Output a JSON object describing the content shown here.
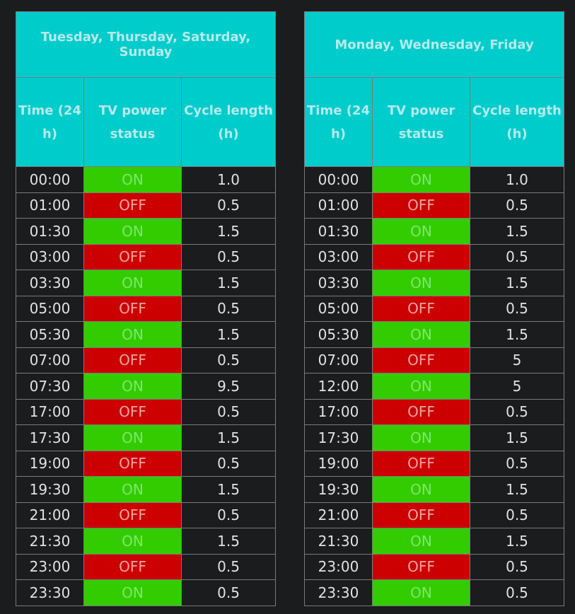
{
  "columns": [
    "Time (24 h)",
    "TV power status",
    "Cycle length (h)"
  ],
  "tables": [
    {
      "group": "Tuesday, Thursday, Saturday, Sunday",
      "rows": [
        {
          "time": "00:00",
          "status": "ON",
          "cycle": "1.0"
        },
        {
          "time": "01:00",
          "status": "OFF",
          "cycle": "0.5"
        },
        {
          "time": "01:30",
          "status": "ON",
          "cycle": "1.5"
        },
        {
          "time": "03:00",
          "status": "OFF",
          "cycle": "0.5"
        },
        {
          "time": "03:30",
          "status": "ON",
          "cycle": "1.5"
        },
        {
          "time": "05:00",
          "status": "OFF",
          "cycle": "0.5"
        },
        {
          "time": "05:30",
          "status": "ON",
          "cycle": "1.5"
        },
        {
          "time": "07:00",
          "status": "OFF",
          "cycle": "0.5"
        },
        {
          "time": "07:30",
          "status": "ON",
          "cycle": "9.5"
        },
        {
          "time": "17:00",
          "status": "OFF",
          "cycle": "0.5"
        },
        {
          "time": "17:30",
          "status": "ON",
          "cycle": "1.5"
        },
        {
          "time": "19:00",
          "status": "OFF",
          "cycle": "0.5"
        },
        {
          "time": "19:30",
          "status": "ON",
          "cycle": "1.5"
        },
        {
          "time": "21:00",
          "status": "OFF",
          "cycle": "0.5"
        },
        {
          "time": "21:30",
          "status": "ON",
          "cycle": "1.5"
        },
        {
          "time": "23:00",
          "status": "OFF",
          "cycle": "0.5"
        },
        {
          "time": "23:30",
          "status": "ON",
          "cycle": "0.5"
        }
      ]
    },
    {
      "group": "Monday, Wednesday, Friday",
      "rows": [
        {
          "time": "00:00",
          "status": "ON",
          "cycle": "1.0"
        },
        {
          "time": "01:00",
          "status": "OFF",
          "cycle": "0.5"
        },
        {
          "time": "01:30",
          "status": "ON",
          "cycle": "1.5"
        },
        {
          "time": "03:00",
          "status": "OFF",
          "cycle": "0.5"
        },
        {
          "time": "03:30",
          "status": "ON",
          "cycle": "1.5"
        },
        {
          "time": "05:00",
          "status": "OFF",
          "cycle": "0.5"
        },
        {
          "time": "05:30",
          "status": "ON",
          "cycle": "1.5"
        },
        {
          "time": "07:00",
          "status": "OFF",
          "cycle": "5"
        },
        {
          "time": "12:00",
          "status": "ON",
          "cycle": "5"
        },
        {
          "time": "17:00",
          "status": "OFF",
          "cycle": "0.5"
        },
        {
          "time": "17:30",
          "status": "ON",
          "cycle": "1.5"
        },
        {
          "time": "19:00",
          "status": "OFF",
          "cycle": "0.5"
        },
        {
          "time": "19:30",
          "status": "ON",
          "cycle": "1.5"
        },
        {
          "time": "21:00",
          "status": "OFF",
          "cycle": "0.5"
        },
        {
          "time": "21:30",
          "status": "ON",
          "cycle": "1.5"
        },
        {
          "time": "23:00",
          "status": "OFF",
          "cycle": "0.5"
        },
        {
          "time": "23:30",
          "status": "ON",
          "cycle": "0.5"
        }
      ]
    }
  ],
  "colors": {
    "background": "#1b1c1e",
    "header": "#00cccc",
    "header_text": "#b7eaea",
    "on": "#33cc00",
    "on_text": "#7de86a",
    "off": "#cc0000",
    "off_text": "#f0a3a3",
    "grid": "#7a7a7a"
  }
}
